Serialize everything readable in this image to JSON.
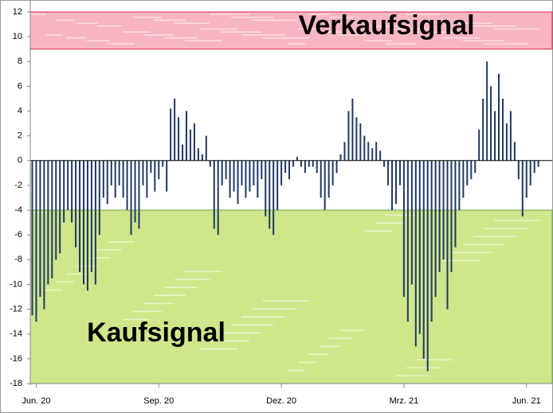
{
  "chart_data": {
    "type": "bar",
    "categories": [
      null,
      "Jun. 20",
      null,
      null,
      null,
      null,
      null,
      null,
      null,
      null,
      null,
      null,
      null,
      null,
      null,
      null,
      null,
      null,
      null,
      null,
      null,
      null,
      null,
      null,
      null,
      null,
      null,
      null,
      null,
      null,
      null,
      null,
      "Sep. 20",
      null,
      null,
      null,
      null,
      null,
      null,
      null,
      null,
      null,
      null,
      null,
      null,
      null,
      null,
      null,
      null,
      null,
      null,
      null,
      null,
      null,
      null,
      null,
      null,
      null,
      null,
      null,
      null,
      null,
      null,
      "Dez. 20",
      null,
      null,
      null,
      null,
      null,
      null,
      null,
      null,
      null,
      null,
      null,
      null,
      null,
      null,
      null,
      null,
      null,
      null,
      null,
      null,
      null,
      null,
      null,
      null,
      null,
      null,
      null,
      null,
      null,
      null,
      "Mrz. 21",
      null,
      null,
      null,
      null,
      null,
      null,
      null,
      null,
      null,
      null,
      null,
      null,
      null,
      null,
      null,
      null,
      null,
      null,
      null,
      null,
      null,
      null,
      null,
      null,
      null,
      null,
      null,
      null,
      null,
      null,
      "Jun. 21",
      null,
      null,
      null,
      null,
      null,
      null
    ],
    "values": [
      -12.5,
      -13,
      -11,
      -12,
      -10,
      -9.5,
      -8,
      -7.5,
      -5,
      -4,
      -5,
      -7,
      -9,
      -10,
      -10.5,
      -9,
      -10,
      -6,
      -3,
      -3.5,
      -2,
      -3,
      -2,
      -3,
      -4,
      -6,
      -5,
      -5.5,
      -2,
      -3,
      -1,
      -2.5,
      -1.5,
      -0.5,
      -2.5,
      4.2,
      5,
      3.5,
      1.3,
      4,
      2.5,
      3,
      1,
      0.5,
      2,
      -0.5,
      -5.5,
      -6,
      -2,
      -1.5,
      -3,
      -2.5,
      -3.5,
      -2,
      -3,
      -2.5,
      -2,
      -3,
      -1.5,
      -4.5,
      -5.5,
      -6,
      -4,
      -2,
      -1,
      -1.5,
      -0.5,
      0.3,
      -0.5,
      -1,
      -0.5,
      -0.5,
      -1,
      -3,
      -4,
      -3,
      -2,
      -1,
      0.5,
      1.5,
      4,
      5,
      3.5,
      3,
      2,
      1.5,
      1,
      1.5,
      0.8,
      -0.5,
      -2,
      -4,
      -3.5,
      -2,
      -11,
      -13,
      -10,
      -15,
      -14,
      -16,
      -17,
      -13,
      -11,
      -9,
      -8,
      -12,
      -9,
      -7,
      -4,
      -3,
      -2,
      -1.5,
      -1,
      2.5,
      5,
      8,
      6,
      4,
      7,
      5,
      3,
      4,
      1.5,
      -1.5,
      -4.5,
      -3,
      -2,
      -1,
      -0.5,
      0,
      0,
      0
    ],
    "color": "#1f3864",
    "ylim": [
      -18,
      12
    ],
    "yticks": [
      -18,
      -16,
      -14,
      -12,
      -10,
      -8,
      -6,
      -4,
      -2,
      0,
      2,
      4,
      6,
      8,
      10,
      12
    ],
    "zones": [
      {
        "label": "Verkaufsignal",
        "from": 9,
        "to": 12,
        "color": "#f7b6c2",
        "border": "#d0204a"
      },
      {
        "label": "Kaufsignal",
        "from": -18,
        "to": -4,
        "color": "#cfe68a",
        "border": "#6aa84f"
      }
    ]
  }
}
